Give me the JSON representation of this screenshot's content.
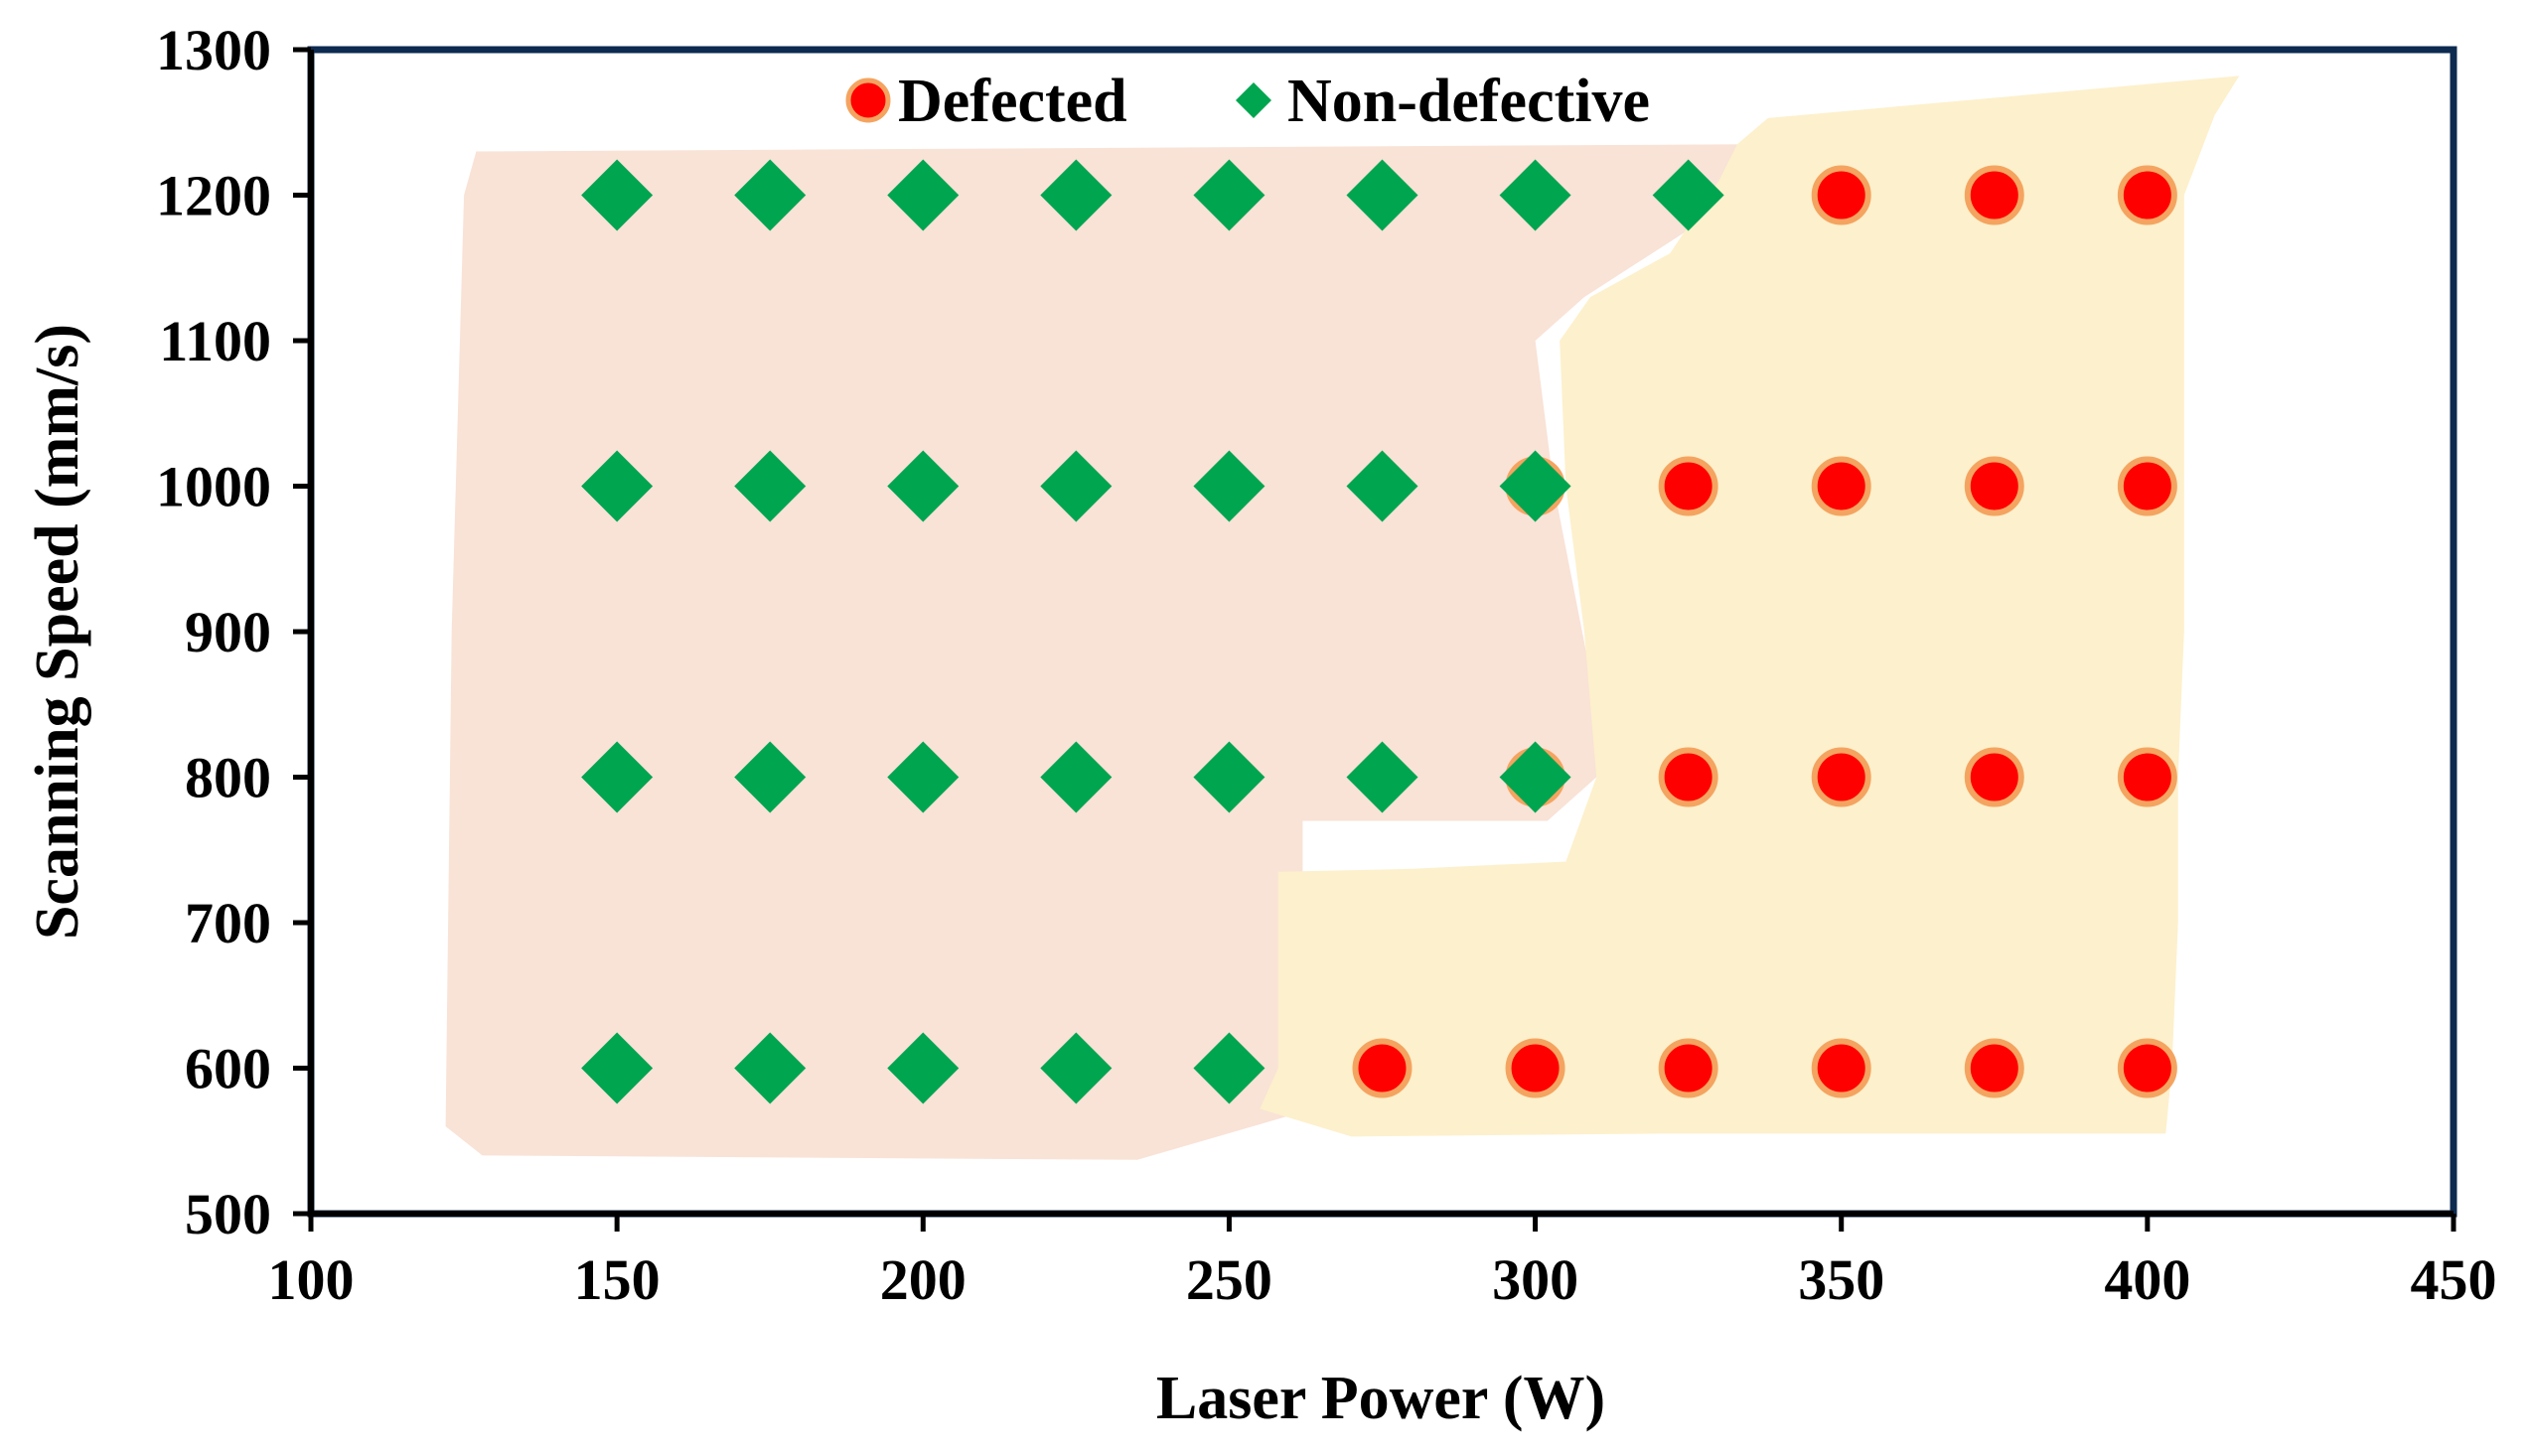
{
  "chart_data": {
    "type": "scatter",
    "title": "",
    "xlabel": "Laser Power (W)",
    "ylabel": "Scanning Speed (mm/s)",
    "xlim": [
      100,
      450
    ],
    "ylim": [
      500,
      1300
    ],
    "x_ticks": [
      100,
      150,
      200,
      250,
      300,
      350,
      400,
      450
    ],
    "y_ticks": [
      500,
      600,
      700,
      800,
      900,
      1000,
      1100,
      1200,
      1300
    ],
    "grid": false,
    "legend_position": "top-center",
    "colors": {
      "defected": "#ff0000",
      "defected_edge": "#f4a460",
      "non_defective": "#00a550",
      "region_non_defective": "#f9e2d6",
      "region_defected": "#fdf0cc",
      "frame": "#0d2a4f"
    },
    "series": [
      {
        "name": "Defected",
        "marker": "circle",
        "points": [
          {
            "x": 275,
            "y": 600
          },
          {
            "x": 300,
            "y": 600
          },
          {
            "x": 325,
            "y": 600
          },
          {
            "x": 350,
            "y": 600
          },
          {
            "x": 375,
            "y": 600
          },
          {
            "x": 400,
            "y": 600
          },
          {
            "x": 300,
            "y": 800
          },
          {
            "x": 325,
            "y": 800
          },
          {
            "x": 350,
            "y": 800
          },
          {
            "x": 375,
            "y": 800
          },
          {
            "x": 400,
            "y": 800
          },
          {
            "x": 300,
            "y": 1000
          },
          {
            "x": 325,
            "y": 1000
          },
          {
            "x": 350,
            "y": 1000
          },
          {
            "x": 375,
            "y": 1000
          },
          {
            "x": 400,
            "y": 1000
          },
          {
            "x": 350,
            "y": 1200
          },
          {
            "x": 375,
            "y": 1200
          },
          {
            "x": 400,
            "y": 1200
          }
        ]
      },
      {
        "name": "Non-defective",
        "marker": "diamond",
        "points": [
          {
            "x": 150,
            "y": 600
          },
          {
            "x": 175,
            "y": 600
          },
          {
            "x": 200,
            "y": 600
          },
          {
            "x": 225,
            "y": 600
          },
          {
            "x": 250,
            "y": 600
          },
          {
            "x": 150,
            "y": 800
          },
          {
            "x": 175,
            "y": 800
          },
          {
            "x": 200,
            "y": 800
          },
          {
            "x": 225,
            "y": 800
          },
          {
            "x": 250,
            "y": 800
          },
          {
            "x": 275,
            "y": 800
          },
          {
            "x": 300,
            "y": 800
          },
          {
            "x": 150,
            "y": 1000
          },
          {
            "x": 175,
            "y": 1000
          },
          {
            "x": 200,
            "y": 1000
          },
          {
            "x": 225,
            "y": 1000
          },
          {
            "x": 250,
            "y": 1000
          },
          {
            "x": 275,
            "y": 1000
          },
          {
            "x": 300,
            "y": 1000
          },
          {
            "x": 150,
            "y": 1200
          },
          {
            "x": 175,
            "y": 1200
          },
          {
            "x": 200,
            "y": 1200
          },
          {
            "x": 225,
            "y": 1200
          },
          {
            "x": 250,
            "y": 1200
          },
          {
            "x": 275,
            "y": 1200
          },
          {
            "x": 300,
            "y": 1200
          },
          {
            "x": 325,
            "y": 1200
          }
        ]
      }
    ],
    "regions": [
      {
        "name": "non-defective-region",
        "color_key": "region_non_defective",
        "polygon": [
          [
            127,
            1230
          ],
          [
            335,
            1235
          ],
          [
            332,
            1195
          ],
          [
            308,
            1130
          ],
          [
            300,
            1100
          ],
          [
            303,
            1000
          ],
          [
            310,
            850
          ],
          [
            310,
            800
          ],
          [
            302,
            770
          ],
          [
            262,
            770
          ],
          [
            262,
            570
          ],
          [
            235,
            537
          ],
          [
            128,
            540
          ],
          [
            122,
            560
          ],
          [
            123,
            900
          ],
          [
            125,
            1200
          ]
        ]
      },
      {
        "name": "defected-region",
        "color_key": "region_defected",
        "polygon": [
          [
            338,
            1253
          ],
          [
            415,
            1282
          ],
          [
            411,
            1255
          ],
          [
            406,
            1200
          ],
          [
            406,
            1100
          ],
          [
            406,
            1000
          ],
          [
            406,
            900
          ],
          [
            405,
            800
          ],
          [
            405,
            700
          ],
          [
            404,
            600
          ],
          [
            403,
            555
          ],
          [
            320,
            555
          ],
          [
            270,
            553
          ],
          [
            255,
            572
          ],
          [
            258,
            600
          ],
          [
            258,
            735
          ],
          [
            280,
            737
          ],
          [
            305,
            742
          ],
          [
            310,
            800
          ],
          [
            308,
            900
          ],
          [
            305,
            1000
          ],
          [
            304,
            1100
          ],
          [
            309,
            1130
          ],
          [
            322,
            1160
          ],
          [
            330,
            1210
          ],
          [
            333,
            1235
          ]
        ]
      }
    ]
  }
}
